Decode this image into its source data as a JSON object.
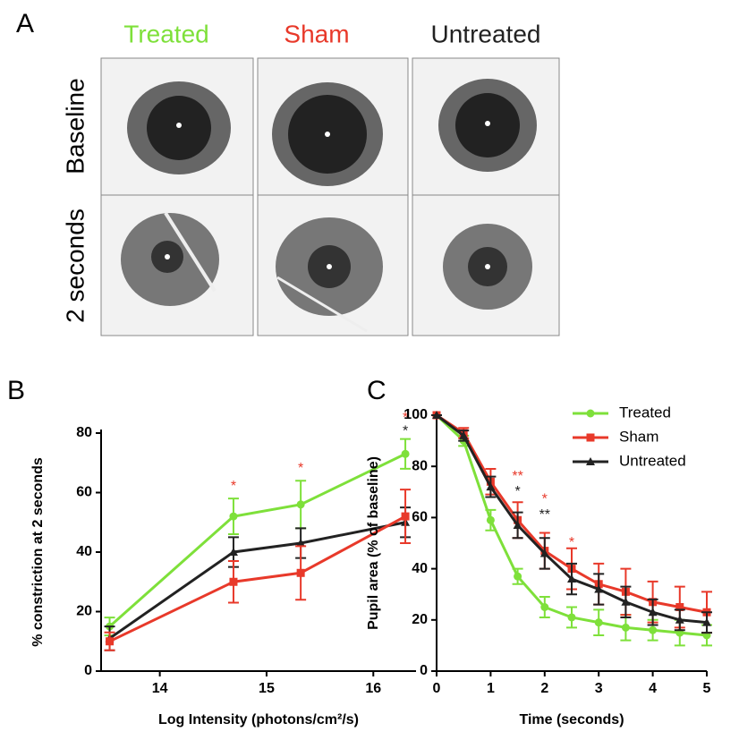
{
  "panel_a": {
    "label": "A",
    "columns": [
      {
        "text": "Treated",
        "color": "#7ee03a"
      },
      {
        "text": "Sham",
        "color": "#e8392a"
      },
      {
        "text": "Untreated",
        "color": "#222222"
      }
    ],
    "rows": [
      "Baseline",
      "2 seconds"
    ]
  },
  "chart_data": [
    {
      "type": "line",
      "panel_label": "B",
      "xlabel": "Log Intensity (photons/cm²/s)",
      "ylabel": "% constriction at 2 seconds",
      "x": [
        13.53,
        14.69,
        15.32,
        16.3
      ],
      "xlim": [
        13.45,
        16.4
      ],
      "xticks": [
        14,
        15,
        16
      ],
      "ylim": [
        0,
        80
      ],
      "yticks": [
        0,
        20,
        40,
        60,
        80
      ],
      "series": [
        {
          "color": "#7ee03a",
          "marker": "circle",
          "values": [
            15,
            52,
            56,
            73
          ],
          "errors": [
            3,
            6,
            8,
            5
          ]
        },
        {
          "color": "#222222",
          "marker": "triangle",
          "values": [
            11,
            40,
            43,
            50
          ],
          "errors": [
            4,
            5,
            5,
            5
          ]
        },
        {
          "color": "#e8392a",
          "marker": "square",
          "values": [
            10,
            30,
            33,
            52
          ],
          "errors": [
            3,
            7,
            9,
            9
          ]
        }
      ],
      "annotations": [
        {
          "text": "*",
          "color": "#e8392a",
          "x": 14.69,
          "y": 62
        },
        {
          "text": "*",
          "color": "#e8392a",
          "x": 15.32,
          "y": 68
        },
        {
          "text": "*",
          "color": "#e8392a",
          "x": 16.3,
          "y": 85
        },
        {
          "text": "*",
          "color": "#222222",
          "x": 16.3,
          "y": 80.5
        }
      ]
    },
    {
      "type": "line",
      "panel_label": "C",
      "xlabel": "Time (seconds)",
      "ylabel": "Pupil area (% of baseline)",
      "x": [
        0,
        0.5,
        1,
        1.5,
        2,
        2.5,
        3,
        3.5,
        4,
        4.5,
        5
      ],
      "xlim": [
        0,
        5
      ],
      "xticks": [
        0,
        1,
        2,
        3,
        4,
        5
      ],
      "ylim": [
        0,
        100
      ],
      "yticks": [
        0,
        20,
        40,
        60,
        80,
        100
      ],
      "legend": "upper right",
      "series": [
        {
          "name": "Treated",
          "color": "#7ee03a",
          "marker": "circle",
          "values": [
            100,
            90,
            59,
            37,
            25,
            21,
            19,
            17,
            16,
            15,
            14
          ],
          "errors": [
            0,
            2,
            4,
            3,
            4,
            4,
            5,
            5,
            4,
            5,
            4
          ]
        },
        {
          "name": "Sham",
          "color": "#e8392a",
          "marker": "square",
          "values": [
            100,
            93,
            74,
            59,
            47,
            40,
            34,
            31,
            27,
            25,
            23
          ],
          "errors": [
            0,
            2,
            5,
            7,
            7,
            8,
            8,
            9,
            8,
            8,
            8
          ]
        },
        {
          "name": "Untreated",
          "color": "#222222",
          "marker": "triangle",
          "values": [
            100,
            92,
            72,
            57,
            46,
            36,
            32,
            27,
            23,
            20,
            19
          ],
          "errors": [
            0,
            2,
            4,
            5,
            6,
            6,
            6,
            6,
            5,
            4,
            4
          ]
        }
      ],
      "annotations": [
        {
          "text": "**",
          "color": "#e8392a",
          "x": 1.5,
          "y": 76
        },
        {
          "text": "*",
          "color": "#222222",
          "x": 1.5,
          "y": 70
        },
        {
          "text": "*",
          "color": "#e8392a",
          "x": 2,
          "y": 67
        },
        {
          "text": "**",
          "color": "#222222",
          "x": 2,
          "y": 61
        },
        {
          "text": "*",
          "color": "#e8392a",
          "x": 2.5,
          "y": 50
        }
      ]
    }
  ]
}
